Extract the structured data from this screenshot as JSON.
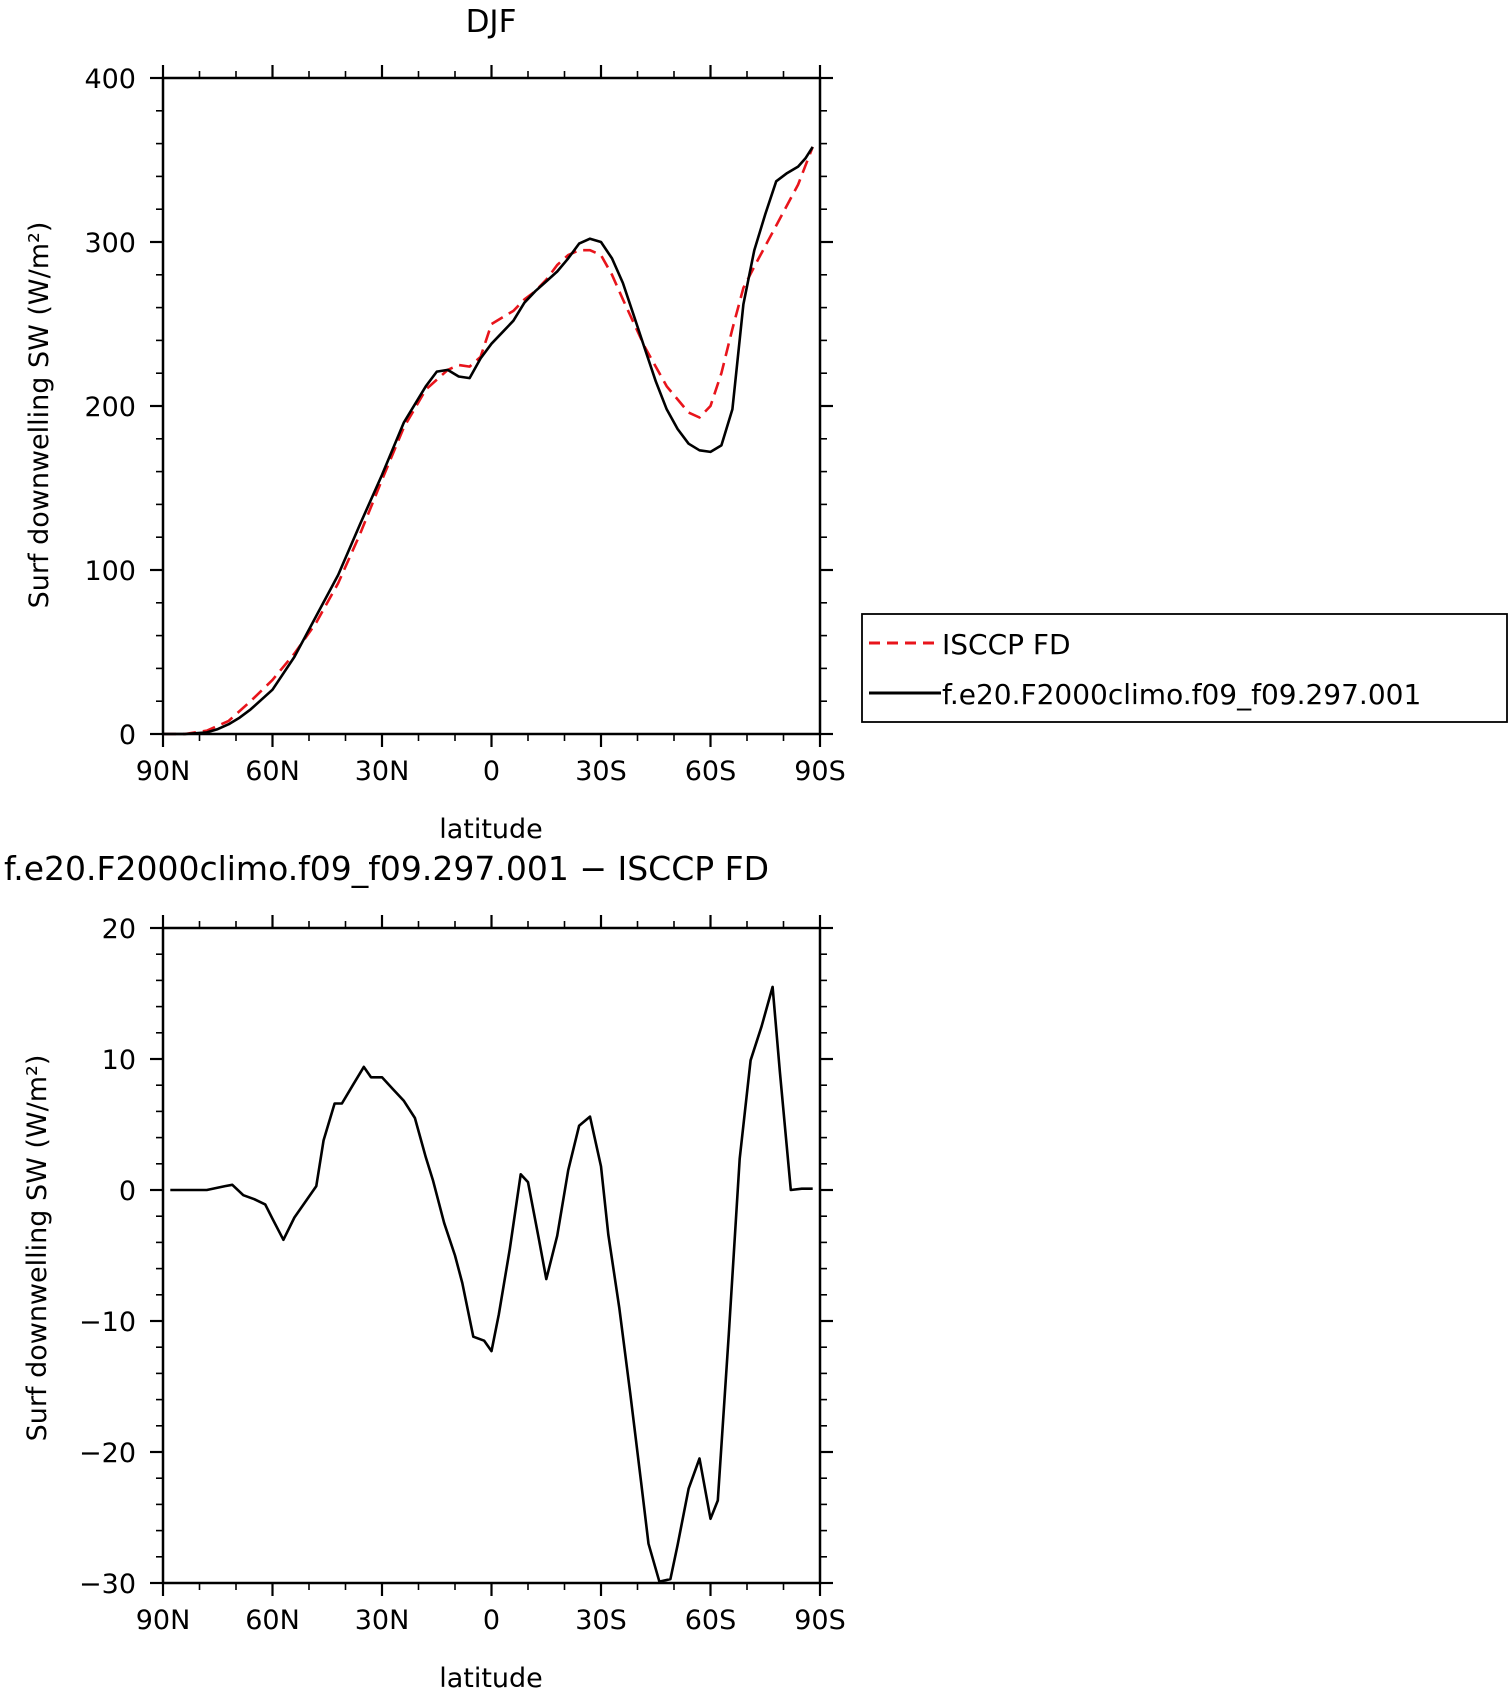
{
  "chart_data": [
    {
      "type": "line",
      "title": "DJF",
      "xlabel": "latitude",
      "ylabel": "Surf downwelling SW (W/m²)",
      "xlim": [
        90,
        -90
      ],
      "ylim": [
        0,
        400
      ],
      "x_ticks": [
        {
          "value": 90,
          "label": "90N"
        },
        {
          "value": 60,
          "label": "60N"
        },
        {
          "value": 30,
          "label": "30N"
        },
        {
          "value": 0,
          "label": "0"
        },
        {
          "value": -30,
          "label": "30S"
        },
        {
          "value": -60,
          "label": "60S"
        },
        {
          "value": -90,
          "label": "90S"
        }
      ],
      "y_ticks": [
        0,
        100,
        200,
        300,
        400
      ],
      "legend_position": "right",
      "series": [
        {
          "name": "ISCCP FD",
          "color": "#e8141b",
          "dash": "dashed",
          "x": [
            90,
            84,
            78,
            72,
            66,
            60,
            54,
            48,
            42,
            36,
            30,
            24,
            18,
            12,
            9,
            6,
            3,
            0,
            -3,
            -6,
            -9,
            -12,
            -15,
            -18,
            -21,
            -24,
            -27,
            -30,
            -33,
            -36,
            -42,
            -48,
            -54,
            -57,
            -60,
            -63,
            -66,
            -69,
            -72,
            -78,
            -84,
            -88
          ],
          "y": [
            0,
            0,
            2,
            8,
            20,
            33,
            49,
            68,
            92,
            122,
            155,
            187,
            210,
            222,
            225,
            224,
            230,
            250,
            254,
            258,
            265,
            270,
            277,
            286,
            292,
            295,
            295,
            292,
            280,
            265,
            236,
            212,
            196,
            193,
            200,
            220,
            247,
            272,
            285,
            310,
            335,
            358
          ]
        },
        {
          "name": "f.e20.F2000climo.f09_f09.297.001",
          "color": "#000000",
          "dash": "solid",
          "x": [
            90,
            84,
            78,
            75,
            72,
            69,
            66,
            60,
            54,
            48,
            42,
            36,
            30,
            24,
            18,
            15,
            12,
            9,
            6,
            3,
            0,
            -3,
            -6,
            -9,
            -12,
            -15,
            -18,
            -21,
            -24,
            -27,
            -30,
            -33,
            -36,
            -39,
            -42,
            -45,
            -48,
            -51,
            -54,
            -57,
            -60,
            -63,
            -66,
            -69,
            -72,
            -75,
            -78,
            -81,
            -84,
            -86,
            -88
          ],
          "y": [
            0,
            0,
            1,
            3,
            6,
            10,
            15,
            27,
            47,
            72,
            97,
            128,
            158,
            190,
            212,
            221,
            222,
            218,
            217,
            229,
            238,
            245,
            252,
            263,
            270,
            276,
            282,
            290,
            299,
            302,
            300,
            290,
            275,
            255,
            235,
            215,
            198,
            186,
            177,
            173,
            172,
            176,
            198,
            262,
            295,
            317,
            337,
            342,
            346,
            351,
            358
          ]
        }
      ]
    },
    {
      "type": "line",
      "title": "f.e20.F2000climo.f09_f09.297.001 − ISCCP FD",
      "xlabel": "latitude",
      "ylabel": "Surf downwelling SW (W/m²)",
      "xlim": [
        90,
        -90
      ],
      "ylim": [
        -30,
        20
      ],
      "x_ticks": [
        {
          "value": 90,
          "label": "90N"
        },
        {
          "value": 60,
          "label": "60N"
        },
        {
          "value": 30,
          "label": "30N"
        },
        {
          "value": 0,
          "label": "0"
        },
        {
          "value": -30,
          "label": "30S"
        },
        {
          "value": -60,
          "label": "60S"
        },
        {
          "value": -90,
          "label": "90S"
        }
      ],
      "y_ticks": [
        -30,
        -20,
        -10,
        0,
        10,
        20
      ],
      "y_tick_labels": [
        "−30",
        "−20",
        "−10",
        "0",
        "10",
        "20"
      ],
      "series": [
        {
          "name": "",
          "color": "#000000",
          "dash": "solid",
          "x": [
            88,
            83,
            78,
            73,
            71,
            68,
            65,
            62,
            60,
            57,
            54,
            51,
            48,
            46,
            43,
            41,
            38,
            35,
            33,
            30,
            27,
            24,
            21,
            18,
            16,
            13,
            10,
            8,
            5,
            2,
            0,
            -2,
            -5,
            -8,
            -10,
            -13,
            -15,
            -18,
            -21,
            -24,
            -27,
            -30,
            -32,
            -35,
            -38,
            -41,
            -43,
            -46,
            -49,
            -51,
            -54,
            -57,
            -60,
            -62,
            -65,
            -68,
            -71,
            -74,
            -77,
            -79,
            -82,
            -85,
            -88
          ],
          "y": [
            0,
            0,
            0,
            0.3,
            0.4,
            -0.4,
            -0.7,
            -1.1,
            -2.2,
            -3.8,
            -2.1,
            -0.9,
            0.3,
            3.8,
            6.6,
            6.6,
            8,
            9.4,
            8.6,
            8.6,
            7.7,
            6.8,
            5.5,
            2.5,
            0.7,
            -2.5,
            -5,
            -7.1,
            -11.2,
            -11.5,
            -12.3,
            -9.5,
            -4.5,
            1.2,
            0.6,
            -3.8,
            -6.8,
            -3.5,
            1.5,
            4.9,
            5.6,
            1.8,
            -3.4,
            -9,
            -15.5,
            -22.3,
            -27,
            -29.9,
            -29.7,
            -27.1,
            -22.8,
            -20.5,
            -25.1,
            -23.7,
            -11,
            2.4,
            9.9,
            12.5,
            15.5,
            9,
            0,
            0.1,
            0.1
          ]
        }
      ]
    }
  ]
}
